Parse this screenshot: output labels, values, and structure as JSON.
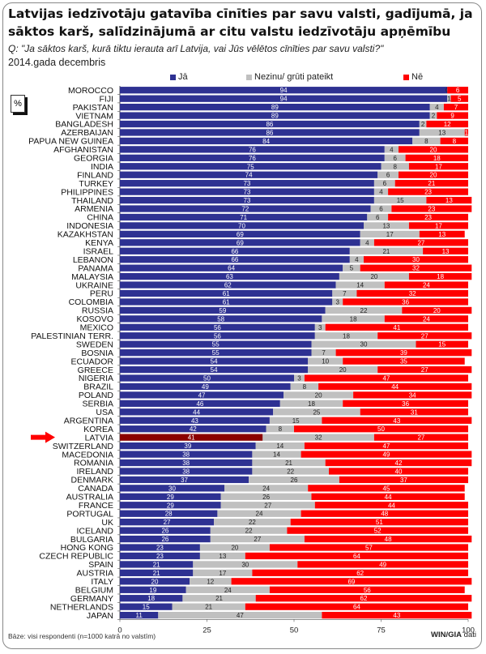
{
  "header": {
    "title": "Latvijas iedzīvotāju gatavība cīnīties par savu valsti, gadījumā, ja sāktos karš, salīdzinājumā ar citu valstu iedzīvotāju apņēmību",
    "question": "Q: \"Ja sāktos karš, kurā tiktu ierauta arī Latvija, vai Jūs vēlētos cīnīties par savu valsti?\"",
    "date": "2014.gada decembris",
    "unit_badge": "%"
  },
  "footer": {
    "base": "Bāze: visi respondenti (n=1000 katrā no valstīm)",
    "source_bold": "WIN/GIA",
    "source_rest": " dati"
  },
  "colors": {
    "yes": "#2E3192",
    "dontknow": "#C0C0C0",
    "no": "#FF0000",
    "highlight_yes": "#8B0000",
    "arrow": "#FF0000"
  },
  "chart_data": {
    "type": "bar",
    "orientation": "horizontal",
    "stacked": true,
    "title": "Latvijas iedzīvotāju gatavība cīnīties par savu valsti, gadījumā, ja sāktos karš, salīdzinājumā ar citu valstu iedzīvotāju apņēmību",
    "xlabel": "",
    "ylabel": "",
    "xlim": [
      0,
      100
    ],
    "xticks": [
      0,
      25,
      50,
      75,
      100
    ],
    "legend_position": "top",
    "highlight": "LATVIA",
    "categories": [
      "MOROCCO",
      "FIJI",
      "PAKISTAN",
      "VIETNAM",
      "BANGLADESH",
      "AZERBAIJAN",
      "PAPUA NEW GUINEA",
      "AFGHANISTAN",
      "GEORGIA",
      "INDIA",
      "FINLAND",
      "TURKEY",
      "PHILIPPINES",
      "THAILAND",
      "ARMENIA",
      "CHINA",
      "INDONESIA",
      "KAZAKHSTAN",
      "KENYA",
      "ISRAEL",
      "LEBANON",
      "PANAMA",
      "MALAYSIA",
      "UKRAINE",
      "PERU",
      "COLOMBIA",
      "RUSSIA",
      "KOSOVO",
      "MEXICO",
      "PALESTINIAN TERR.",
      "SWEDEN",
      "BOSNIA",
      "ECUADOR",
      "GREECE",
      "NIGERIA",
      "BRAZIL",
      "POLAND",
      "SERBIA",
      "USA",
      "ARGENTINA",
      "KOREA",
      "LATVIA",
      "SWITZERLAND",
      "MACEDONIA",
      "ROMANIA",
      "IRELAND",
      "DENMARK",
      "CANADA",
      "AUSTRALIA",
      "FRANCE",
      "PORTUGAL",
      "UK",
      "ICELAND",
      "BULGARIA",
      "HONG KONG",
      "CZECH REPUBLIC",
      "SPAIN",
      "AUSTRIA",
      "ITALY",
      "BELGIUM",
      "GERMANY",
      "NETHERLANDS",
      "JAPAN"
    ],
    "series": [
      {
        "name": "Jā",
        "values": [
          94,
          94,
          89,
          89,
          86,
          86,
          84,
          76,
          76,
          75,
          74,
          73,
          73,
          73,
          72,
          71,
          70,
          69,
          69,
          66,
          66,
          64,
          63,
          62,
          61,
          61,
          59,
          58,
          56,
          56,
          55,
          55,
          54,
          54,
          50,
          49,
          47,
          46,
          44,
          43,
          42,
          41,
          39,
          38,
          38,
          38,
          37,
          30,
          29,
          29,
          28,
          27,
          26,
          26,
          23,
          23,
          21,
          21,
          20,
          19,
          18,
          15,
          11
        ]
      },
      {
        "name": "Nezinu/ grūti pateikt",
        "values": [
          0,
          1,
          4,
          2,
          2,
          13,
          8,
          4,
          6,
          8,
          6,
          6,
          4,
          15,
          6,
          6,
          13,
          17,
          4,
          21,
          4,
          5,
          20,
          14,
          7,
          3,
          22,
          18,
          3,
          18,
          30,
          7,
          10,
          20,
          3,
          8,
          20,
          18,
          25,
          15,
          8,
          32,
          14,
          14,
          21,
          22,
          26,
          24,
          26,
          27,
          24,
          22,
          22,
          27,
          20,
          13,
          30,
          17,
          12,
          24,
          21,
          21,
          47
        ]
      },
      {
        "name": "Nē",
        "values": [
          6,
          5,
          7,
          9,
          12,
          1,
          8,
          20,
          18,
          17,
          20,
          21,
          23,
          13,
          23,
          23,
          17,
          13,
          27,
          13,
          30,
          32,
          18,
          24,
          32,
          36,
          20,
          24,
          41,
          27,
          15,
          39,
          35,
          27,
          47,
          44,
          34,
          36,
          31,
          43,
          50,
          27,
          47,
          49,
          42,
          40,
          37,
          45,
          44,
          44,
          48,
          51,
          52,
          48,
          57,
          64,
          49,
          62,
          69,
          56,
          62,
          64,
          43
        ]
      }
    ]
  }
}
